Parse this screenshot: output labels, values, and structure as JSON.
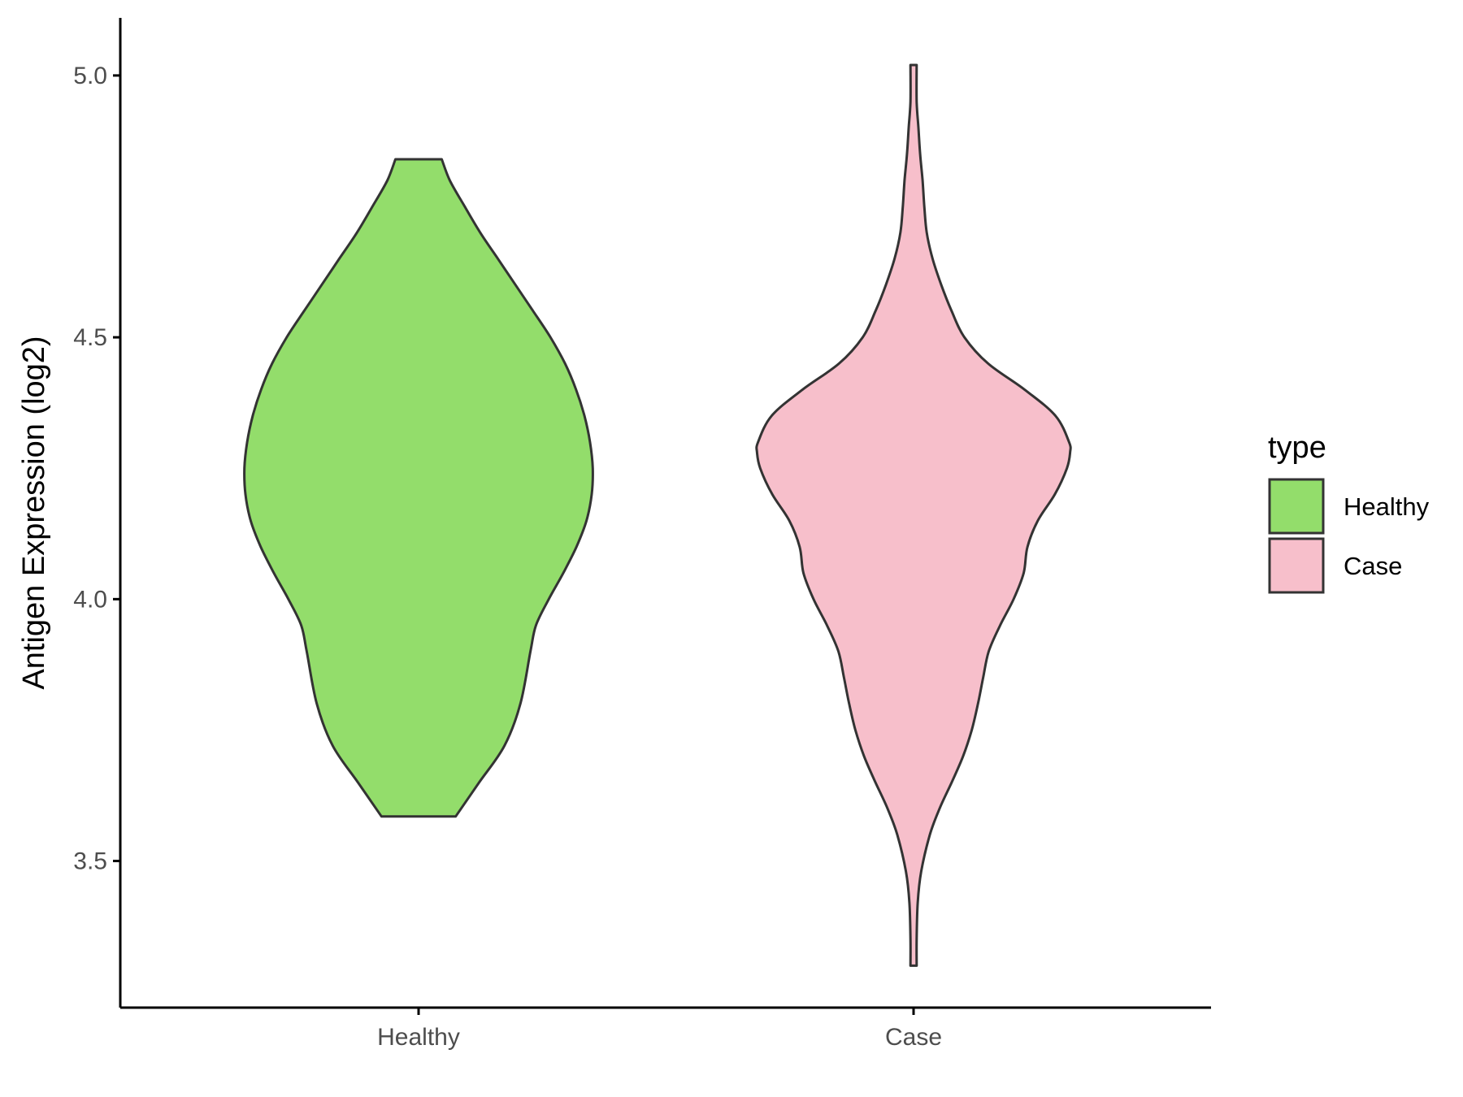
{
  "chart_data": {
    "type": "violin",
    "categories": [
      "Healthy",
      "Case"
    ],
    "ylabel": "Antigen Expression (log2)",
    "xlabel": "",
    "ylim": [
      3.22,
      5.11
    ],
    "yticks": [
      "3.5",
      "4.0",
      "4.5",
      "5.0"
    ],
    "ytick_values": [
      3.5,
      4.0,
      4.5,
      5.0
    ],
    "legend": {
      "title": "type",
      "position": "right",
      "entries": [
        "Healthy",
        "Case"
      ]
    },
    "grid": false,
    "series": [
      {
        "name": "Healthy",
        "color": "#93dd6b",
        "range": [
          3.585,
          4.84
        ],
        "density": [
          [
            3.585,
            0.107
          ],
          [
            3.65,
            0.175
          ],
          [
            3.72,
            0.248
          ],
          [
            3.8,
            0.294
          ],
          [
            3.9,
            0.323
          ],
          [
            3.95,
            0.339
          ],
          [
            4.0,
            0.376
          ],
          [
            4.05,
            0.418
          ],
          [
            4.1,
            0.456
          ],
          [
            4.15,
            0.485
          ],
          [
            4.2,
            0.5
          ],
          [
            4.25,
            0.503
          ],
          [
            4.3,
            0.495
          ],
          [
            4.35,
            0.479
          ],
          [
            4.4,
            0.455
          ],
          [
            4.45,
            0.423
          ],
          [
            4.5,
            0.381
          ],
          [
            4.55,
            0.331
          ],
          [
            4.6,
            0.28
          ],
          [
            4.65,
            0.229
          ],
          [
            4.7,
            0.178
          ],
          [
            4.75,
            0.133
          ],
          [
            4.8,
            0.09
          ],
          [
            4.84,
            0.067
          ]
        ]
      },
      {
        "name": "Case",
        "color": "#f7bfcb",
        "range": [
          3.3,
          5.02
        ],
        "density": [
          [
            3.3,
            0.009
          ],
          [
            3.35,
            0.009
          ],
          [
            3.42,
            0.012
          ],
          [
            3.48,
            0.022
          ],
          [
            3.55,
            0.047
          ],
          [
            3.6,
            0.075
          ],
          [
            3.65,
            0.11
          ],
          [
            3.7,
            0.143
          ],
          [
            3.75,
            0.168
          ],
          [
            3.8,
            0.186
          ],
          [
            3.85,
            0.201
          ],
          [
            3.9,
            0.217
          ],
          [
            3.95,
            0.25
          ],
          [
            4.0,
            0.289
          ],
          [
            4.05,
            0.318
          ],
          [
            4.1,
            0.329
          ],
          [
            4.15,
            0.359
          ],
          [
            4.2,
            0.408
          ],
          [
            4.25,
            0.443
          ],
          [
            4.28,
            0.452
          ],
          [
            4.3,
            0.449
          ],
          [
            4.35,
            0.41
          ],
          [
            4.4,
            0.321
          ],
          [
            4.45,
            0.215
          ],
          [
            4.5,
            0.147
          ],
          [
            4.55,
            0.11
          ],
          [
            4.6,
            0.08
          ],
          [
            4.65,
            0.055
          ],
          [
            4.7,
            0.038
          ],
          [
            4.75,
            0.031
          ],
          [
            4.8,
            0.026
          ],
          [
            4.85,
            0.019
          ],
          [
            4.9,
            0.014
          ],
          [
            4.95,
            0.009
          ],
          [
            5.02,
            0.009
          ]
        ]
      }
    ]
  }
}
